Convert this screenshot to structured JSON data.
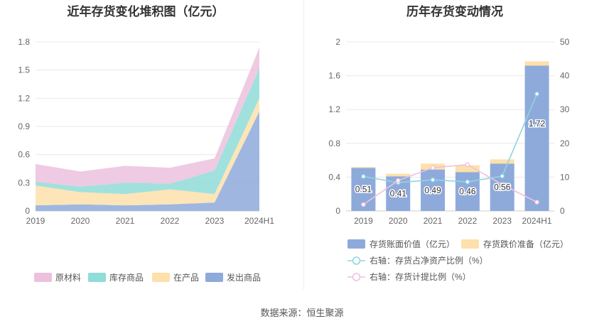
{
  "charts": {
    "left": {
      "title": "近年存货变化堆积图（亿元）"
    },
    "right": {
      "title": "历年存货变动情况"
    }
  },
  "chart_data": [
    {
      "type": "area",
      "stacked": true,
      "title": "近年存货变化堆积图（亿元）",
      "x": [
        "2019",
        "2020",
        "2021",
        "2022",
        "2023",
        "2024H1"
      ],
      "ylim": [
        0,
        1.8
      ],
      "yticks": [
        "0",
        "0.3",
        "0.6",
        "0.9",
        "1.2",
        "1.5",
        "1.8"
      ],
      "grid": true,
      "legend_position": "bottom",
      "series": [
        {
          "name": "发出商品",
          "color": "#8eaadb",
          "values": [
            0.06,
            0.07,
            0.06,
            0.07,
            0.09,
            1.06
          ]
        },
        {
          "name": "在产品",
          "color": "#fde0aa",
          "values": [
            0.21,
            0.13,
            0.12,
            0.16,
            0.09,
            0.14
          ]
        },
        {
          "name": "库存商品",
          "color": "#8fdcd8",
          "values": [
            0.04,
            0.06,
            0.12,
            0.06,
            0.25,
            0.32
          ]
        },
        {
          "name": "原材料",
          "color": "#ecc1de",
          "values": [
            0.19,
            0.16,
            0.18,
            0.17,
            0.13,
            0.22
          ]
        }
      ],
      "legend_order": [
        "原材料",
        "库存商品",
        "在产品",
        "发出商品"
      ]
    },
    {
      "type": "bar",
      "stacked": true,
      "title": "历年存货变动情况",
      "categories": [
        "2019",
        "2020",
        "2021",
        "2022",
        "2023",
        "2024H1"
      ],
      "ylim": [
        0,
        2
      ],
      "yticks": [
        "0",
        "0.4",
        "0.8",
        "1.2",
        "1.6",
        "2"
      ],
      "y2lim": [
        0,
        50
      ],
      "y2ticks": [
        "0",
        "10",
        "20",
        "30",
        "40",
        "50"
      ],
      "grid": true,
      "legend_position": "bottom",
      "series": [
        {
          "name": "存货账面价值（亿元）",
          "color": "#8eaadb",
          "type": "bar",
          "values": [
            0.51,
            0.41,
            0.49,
            0.46,
            0.56,
            1.72
          ],
          "labels": [
            "0.51",
            "0.41",
            "0.49",
            "0.46",
            "0.56",
            "1.72"
          ]
        },
        {
          "name": "存货跌价准备（亿元）",
          "color": "#fde0aa",
          "type": "bar",
          "values": [
            0.01,
            0.03,
            0.07,
            0.08,
            0.05,
            0.05
          ]
        },
        {
          "name": "右轴：存货占净资产比例（%）",
          "color": "#8fd6de",
          "type": "line",
          "axis": "right",
          "values": [
            10.2,
            8.4,
            9.2,
            8.6,
            10.3,
            34.6
          ]
        },
        {
          "name": "右轴：存货计提比例（%）",
          "color": "#eec1de",
          "type": "line",
          "axis": "right",
          "values": [
            1.9,
            9.0,
            12.8,
            13.7,
            7.8,
            2.6
          ]
        }
      ]
    }
  ],
  "footer": {
    "source": "数据来源：恒生聚源"
  }
}
